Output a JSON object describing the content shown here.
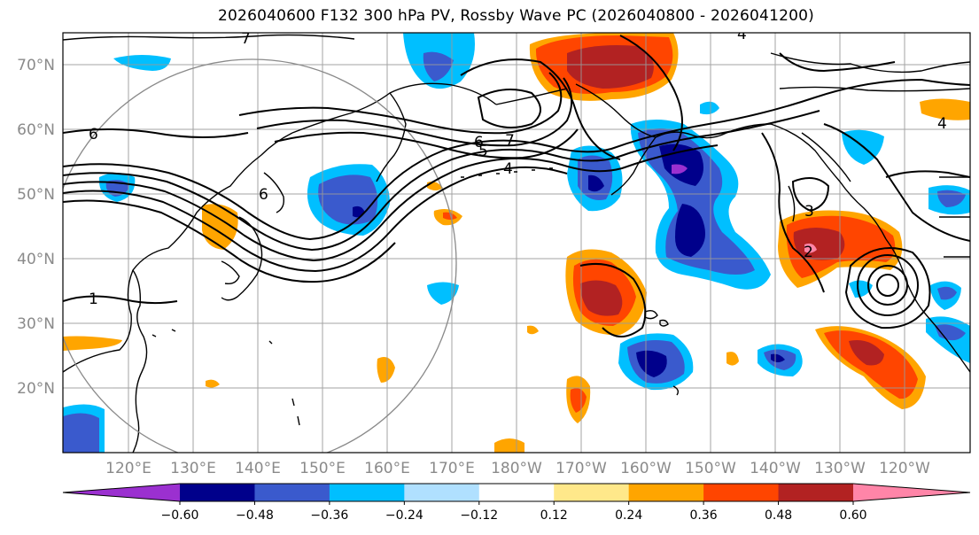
{
  "title": "2026040600 F132 300 hPa PV, Rossby Wave PC (2026040800 - 2026041200)",
  "lat_labels": [
    "70°N",
    "60°N",
    "50°N",
    "40°N",
    "30°N",
    "20°N"
  ],
  "lon_labels": [
    "120°E",
    "130°E",
    "140°E",
    "150°E",
    "160°E",
    "170°E",
    "180°W",
    "170°W",
    "160°W",
    "150°W",
    "140°W",
    "130°W",
    "120°W"
  ],
  "contour_labels": [
    "7",
    "6",
    "5",
    "4",
    "6",
    "7",
    "5",
    "4",
    "3",
    "2",
    "1",
    "3",
    "2",
    "5",
    "6",
    "4"
  ],
  "colorbar": {
    "tick_labels": [
      "−0.60",
      "−0.48",
      "−0.36",
      "−0.24",
      "−0.12",
      "0.12",
      "0.24",
      "0.36",
      "0.48",
      "0.60"
    ],
    "colors": [
      "#9b30d0",
      "#00008b",
      "#3a5acd",
      "#00bfff",
      "#b0e0ff",
      "#ffffff",
      "#ffe88a",
      "#ffa500",
      "#ff4500",
      "#b22222",
      "#ff85a8"
    ]
  }
}
